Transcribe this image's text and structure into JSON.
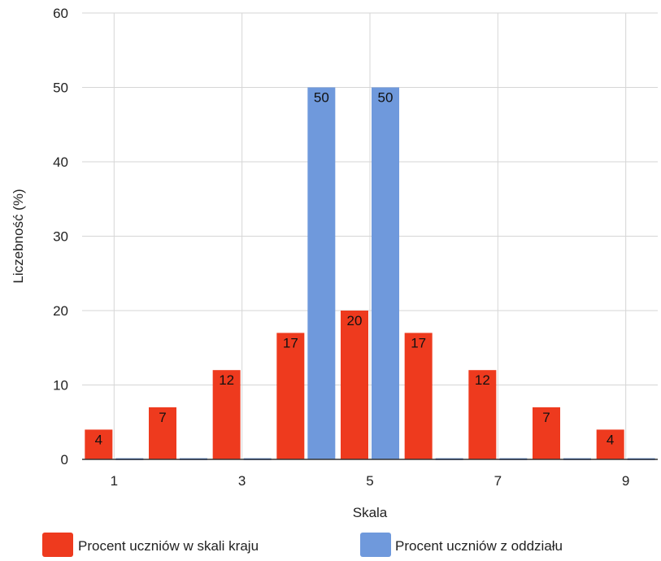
{
  "chart_data": {
    "type": "bar",
    "xlabel": "Skala",
    "ylabel": "Liczebność (%)",
    "ylim": [
      0,
      60
    ],
    "yticks": [
      "0",
      "10",
      "20",
      "30",
      "40",
      "50",
      "60"
    ],
    "x": [
      1,
      2,
      3,
      4,
      5,
      6,
      7,
      8,
      9
    ],
    "xticks": [
      "1",
      "3",
      "5",
      "7",
      "9"
    ],
    "xlim": [
      0.5,
      9.5
    ],
    "grid": true,
    "legend_position": "bottom",
    "series": [
      {
        "name": "Procent uczniów w skali kraju",
        "color": "#ee3a1e",
        "values": [
          4,
          7,
          12,
          17,
          20,
          17,
          12,
          7,
          4
        ],
        "data_labels": [
          "4",
          "7",
          "12",
          "17",
          "20",
          "17",
          "12",
          "7",
          "4"
        ]
      },
      {
        "name": "Procent uczniów z oddziału",
        "color": "#6f99dc",
        "values": [
          0,
          0,
          0,
          50,
          50,
          0,
          0,
          0,
          0
        ],
        "data_labels": [
          "",
          "",
          "",
          "50",
          "50",
          "",
          "",
          "",
          ""
        ]
      }
    ]
  }
}
